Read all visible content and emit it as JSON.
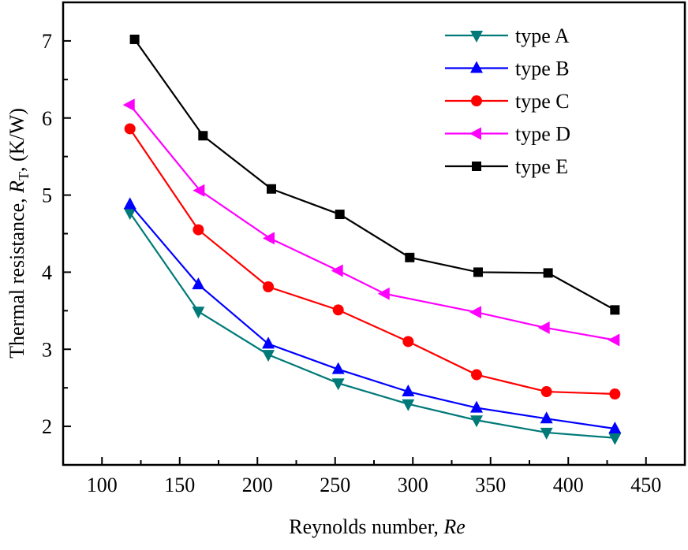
{
  "chart_data": {
    "type": "line",
    "title": "",
    "xlabel": "Reynolds number, ",
    "xlabel_italic": "Re",
    "ylabel_prefix": "Thermal resistance, ",
    "ylabel_symbol": "R",
    "ylabel_subscript": "T",
    "ylabel_suffix": ", (K/W)",
    "xlim": [
      75,
      475
    ],
    "ylim": [
      1.5,
      7.5
    ],
    "xticks": [
      100,
      150,
      200,
      250,
      300,
      350,
      400,
      450
    ],
    "xtick_labels": [
      "100",
      "150",
      "200",
      "250",
      "300",
      "350",
      "400",
      "450"
    ],
    "yticks": [
      2,
      3,
      4,
      5,
      6,
      7
    ],
    "ytick_labels": [
      "2",
      "3",
      "4",
      "5",
      "6",
      "7"
    ],
    "grid": false,
    "legend_position": "top-right",
    "series": [
      {
        "name": "type A",
        "color": "#007a78",
        "marker": "triangle-down",
        "x": [
          118,
          162,
          207,
          252,
          297,
          341,
          386,
          430
        ],
        "values": [
          4.77,
          3.49,
          2.93,
          2.56,
          2.29,
          2.08,
          1.92,
          1.85
        ]
      },
      {
        "name": "type B",
        "color": "#0000ff",
        "marker": "triangle-up",
        "x": [
          118,
          162,
          207,
          252,
          297,
          341,
          386,
          430
        ],
        "values": [
          4.88,
          3.84,
          3.07,
          2.74,
          2.45,
          2.24,
          2.1,
          1.97
        ]
      },
      {
        "name": "type C",
        "color": "#ff0000",
        "marker": "circle",
        "x": [
          118,
          162,
          207,
          252,
          297,
          341,
          386,
          430
        ],
        "values": [
          5.86,
          4.55,
          3.81,
          3.51,
          3.1,
          2.67,
          2.45,
          2.42
        ]
      },
      {
        "name": "type D",
        "color": "#ff00ff",
        "marker": "triangle-left",
        "x": [
          118,
          163,
          208,
          252,
          282,
          341,
          385,
          430
        ],
        "values": [
          6.17,
          5.06,
          4.44,
          4.02,
          3.72,
          3.48,
          3.28,
          3.12
        ]
      },
      {
        "name": "type E",
        "color": "#000000",
        "marker": "square",
        "x": [
          121,
          165,
          209,
          253,
          298,
          342,
          387,
          430
        ],
        "values": [
          7.02,
          5.77,
          5.08,
          4.75,
          4.19,
          4.0,
          3.99,
          3.51
        ]
      }
    ]
  }
}
